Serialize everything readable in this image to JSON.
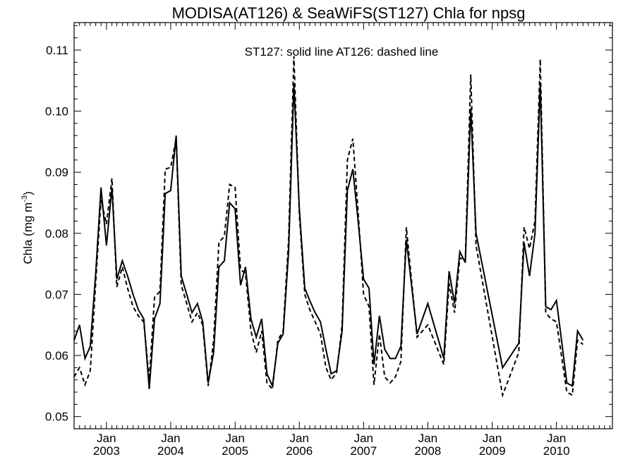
{
  "chart_data": {
    "type": "line",
    "title": "MODISA(AT126) & SeaWiFS(ST127)  Chla for npsg",
    "annotation": "ST127: solid line   AT126: dashed line",
    "ylabel": "Chla (mg m",
    "ylabel_sup": "-3",
    "ylabel_close": ")",
    "ylim": [
      0.048,
      0.1145
    ],
    "xlim": [
      "2002-07-01",
      "2010-11-15"
    ],
    "yticks": [
      0.05,
      0.06,
      0.07,
      0.08,
      0.09,
      0.1,
      0.11
    ],
    "ytick_labels": [
      "0.05",
      "0.06",
      "0.07",
      "0.08",
      "0.09",
      "0.10",
      "0.11"
    ],
    "xticks": [
      {
        "date": "2003-01-01",
        "month": "Jan",
        "year": "2003"
      },
      {
        "date": "2004-01-01",
        "month": "Jan",
        "year": "2004"
      },
      {
        "date": "2005-01-01",
        "month": "Jan",
        "year": "2005"
      },
      {
        "date": "2006-01-01",
        "month": "Jan",
        "year": "2006"
      },
      {
        "date": "2007-01-01",
        "month": "Jan",
        "year": "2007"
      },
      {
        "date": "2008-01-01",
        "month": "Jan",
        "year": "2008"
      },
      {
        "date": "2009-01-01",
        "month": "Jan",
        "year": "2009"
      },
      {
        "date": "2010-01-01",
        "month": "Jan",
        "year": "2010"
      }
    ],
    "grid": false,
    "series": [
      {
        "name": "ST127",
        "style": "solid",
        "color": "#000000",
        "points": [
          [
            "2002-07-01",
            0.0625
          ],
          [
            "2002-08-01",
            0.065
          ],
          [
            "2002-09-01",
            0.0595
          ],
          [
            "2002-10-01",
            0.0615
          ],
          [
            "2002-11-01",
            0.0735
          ],
          [
            "2002-12-01",
            0.0875
          ],
          [
            "2003-01-01",
            0.078
          ],
          [
            "2003-02-01",
            0.0875
          ],
          [
            "2003-03-01",
            0.0725
          ],
          [
            "2003-04-01",
            0.0755
          ],
          [
            "2003-05-01",
            0.073
          ],
          [
            "2003-06-01",
            0.07
          ],
          [
            "2003-07-01",
            0.0675
          ],
          [
            "2003-08-01",
            0.066
          ],
          [
            "2003-09-01",
            0.0545
          ],
          [
            "2003-10-01",
            0.066
          ],
          [
            "2003-11-01",
            0.0685
          ],
          [
            "2003-12-01",
            0.0865
          ],
          [
            "2004-01-01",
            0.087
          ],
          [
            "2004-02-01",
            0.096
          ],
          [
            "2004-03-01",
            0.073
          ],
          [
            "2004-04-01",
            0.07
          ],
          [
            "2004-05-01",
            0.067
          ],
          [
            "2004-06-01",
            0.0685
          ],
          [
            "2004-07-01",
            0.0655
          ],
          [
            "2004-08-01",
            0.0555
          ],
          [
            "2004-09-01",
            0.0605
          ],
          [
            "2004-10-01",
            0.0745
          ],
          [
            "2004-11-01",
            0.0755
          ],
          [
            "2004-12-01",
            0.085
          ],
          [
            "2005-01-01",
            0.084
          ],
          [
            "2005-02-01",
            0.0715
          ],
          [
            "2005-03-01",
            0.0745
          ],
          [
            "2005-04-01",
            0.066
          ],
          [
            "2005-05-01",
            0.063
          ],
          [
            "2005-06-01",
            0.066
          ],
          [
            "2005-07-01",
            0.057
          ],
          [
            "2005-08-01",
            0.055
          ],
          [
            "2005-09-01",
            0.062
          ],
          [
            "2005-10-01",
            0.0635
          ],
          [
            "2005-11-01",
            0.077
          ],
          [
            "2005-12-01",
            0.1045
          ],
          [
            "2006-01-01",
            0.084
          ],
          [
            "2006-02-01",
            0.071
          ],
          [
            "2006-03-01",
            0.069
          ],
          [
            "2006-04-01",
            0.067
          ],
          [
            "2006-05-01",
            0.0655
          ],
          [
            "2006-06-01",
            0.061
          ],
          [
            "2006-07-01",
            0.057
          ],
          [
            "2006-08-01",
            0.0575
          ],
          [
            "2006-09-01",
            0.064
          ],
          [
            "2006-10-01",
            0.087
          ],
          [
            "2006-11-01",
            0.0905
          ],
          [
            "2006-12-01",
            0.082
          ],
          [
            "2007-01-01",
            0.0725
          ],
          [
            "2007-02-01",
            0.071
          ],
          [
            "2007-03-01",
            0.0585
          ],
          [
            "2007-04-01",
            0.0665
          ],
          [
            "2007-05-01",
            0.061
          ],
          [
            "2007-06-01",
            0.0595
          ],
          [
            "2007-07-01",
            0.0595
          ],
          [
            "2007-08-01",
            0.0615
          ],
          [
            "2007-09-01",
            0.079
          ],
          [
            "2007-11-01",
            0.0635
          ],
          [
            "2008-01-01",
            0.0685
          ],
          [
            "2008-04-01",
            0.0595
          ],
          [
            "2008-05-01",
            0.0738
          ],
          [
            "2008-06-01",
            0.0685
          ],
          [
            "2008-07-01",
            0.077
          ],
          [
            "2008-08-01",
            0.0752
          ],
          [
            "2008-09-01",
            0.1005
          ],
          [
            "2008-10-01",
            0.08
          ],
          [
            "2009-03-01",
            0.058
          ],
          [
            "2009-06-01",
            0.062
          ],
          [
            "2009-07-01",
            0.0785
          ],
          [
            "2009-08-01",
            0.073
          ],
          [
            "2009-09-01",
            0.08
          ],
          [
            "2009-10-01",
            0.1045
          ],
          [
            "2009-11-01",
            0.068
          ],
          [
            "2009-12-01",
            0.0675
          ],
          [
            "2010-01-01",
            0.069
          ],
          [
            "2010-02-01",
            0.062
          ],
          [
            "2010-03-01",
            0.0555
          ],
          [
            "2010-04-01",
            0.055
          ],
          [
            "2010-05-01",
            0.064
          ],
          [
            "2010-06-01",
            0.0625
          ]
        ]
      },
      {
        "name": "AT126",
        "style": "dashed",
        "color": "#000000",
        "points": [
          [
            "2002-07-01",
            0.0565
          ],
          [
            "2002-08-01",
            0.058
          ],
          [
            "2002-09-01",
            0.0552
          ],
          [
            "2002-10-01",
            0.0575
          ],
          [
            "2002-11-01",
            0.072
          ],
          [
            "2002-12-01",
            0.0855
          ],
          [
            "2003-01-01",
            0.0815
          ],
          [
            "2003-02-01",
            0.089
          ],
          [
            "2003-03-01",
            0.0712
          ],
          [
            "2003-04-01",
            0.0745
          ],
          [
            "2003-05-01",
            0.071
          ],
          [
            "2003-06-01",
            0.068
          ],
          [
            "2003-07-01",
            0.0665
          ],
          [
            "2003-08-01",
            0.0655
          ],
          [
            "2003-09-01",
            0.056
          ],
          [
            "2003-10-01",
            0.0695
          ],
          [
            "2003-11-01",
            0.0705
          ],
          [
            "2003-12-01",
            0.0905
          ],
          [
            "2004-01-01",
            0.0908
          ],
          [
            "2004-02-01",
            0.0955
          ],
          [
            "2004-03-01",
            0.0715
          ],
          [
            "2004-04-01",
            0.0685
          ],
          [
            "2004-05-01",
            0.0655
          ],
          [
            "2004-06-01",
            0.067
          ],
          [
            "2004-07-01",
            0.065
          ],
          [
            "2004-08-01",
            0.055
          ],
          [
            "2004-09-01",
            0.0625
          ],
          [
            "2004-10-01",
            0.0785
          ],
          [
            "2004-11-01",
            0.0795
          ],
          [
            "2004-12-01",
            0.088
          ],
          [
            "2005-01-01",
            0.0875
          ],
          [
            "2005-02-01",
            0.074
          ],
          [
            "2005-03-01",
            0.0735
          ],
          [
            "2005-04-01",
            0.064
          ],
          [
            "2005-05-01",
            0.0605
          ],
          [
            "2005-06-01",
            0.064
          ],
          [
            "2005-07-01",
            0.0555
          ],
          [
            "2005-08-01",
            0.0545
          ],
          [
            "2005-09-01",
            0.0625
          ],
          [
            "2005-10-01",
            0.064
          ],
          [
            "2005-11-01",
            0.079
          ],
          [
            "2005-12-01",
            0.109
          ],
          [
            "2006-01-01",
            0.083
          ],
          [
            "2006-02-01",
            0.07
          ],
          [
            "2006-03-01",
            0.0675
          ],
          [
            "2006-04-01",
            0.0655
          ],
          [
            "2006-05-01",
            0.0635
          ],
          [
            "2006-06-01",
            0.058
          ],
          [
            "2006-07-01",
            0.056
          ],
          [
            "2006-08-01",
            0.0572
          ],
          [
            "2006-09-01",
            0.065
          ],
          [
            "2006-10-01",
            0.092
          ],
          [
            "2006-11-01",
            0.0955
          ],
          [
            "2006-12-01",
            0.0835
          ],
          [
            "2007-01-01",
            0.07
          ],
          [
            "2007-02-01",
            0.068
          ],
          [
            "2007-03-01",
            0.0552
          ],
          [
            "2007-04-01",
            0.0635
          ],
          [
            "2007-05-01",
            0.0565
          ],
          [
            "2007-06-01",
            0.0555
          ],
          [
            "2007-07-01",
            0.0565
          ],
          [
            "2007-08-01",
            0.059
          ],
          [
            "2007-09-01",
            0.081
          ],
          [
            "2007-11-01",
            0.063
          ],
          [
            "2008-01-01",
            0.065
          ],
          [
            "2008-04-01",
            0.0585
          ],
          [
            "2008-05-01",
            0.0718
          ],
          [
            "2008-06-01",
            0.067
          ],
          [
            "2008-07-01",
            0.076
          ],
          [
            "2008-08-01",
            0.0755
          ],
          [
            "2008-09-01",
            0.106
          ],
          [
            "2008-10-01",
            0.078
          ],
          [
            "2009-03-01",
            0.0535
          ],
          [
            "2009-06-01",
            0.0605
          ],
          [
            "2009-07-01",
            0.081
          ],
          [
            "2009-08-01",
            0.0775
          ],
          [
            "2009-09-01",
            0.082
          ],
          [
            "2009-10-01",
            0.1085
          ],
          [
            "2009-11-01",
            0.067
          ],
          [
            "2009-12-01",
            0.066
          ],
          [
            "2010-01-01",
            0.0655
          ],
          [
            "2010-02-01",
            0.0595
          ],
          [
            "2010-03-01",
            0.054
          ],
          [
            "2010-04-01",
            0.0535
          ],
          [
            "2010-05-01",
            0.0625
          ],
          [
            "2010-06-01",
            0.0618
          ]
        ]
      }
    ]
  }
}
